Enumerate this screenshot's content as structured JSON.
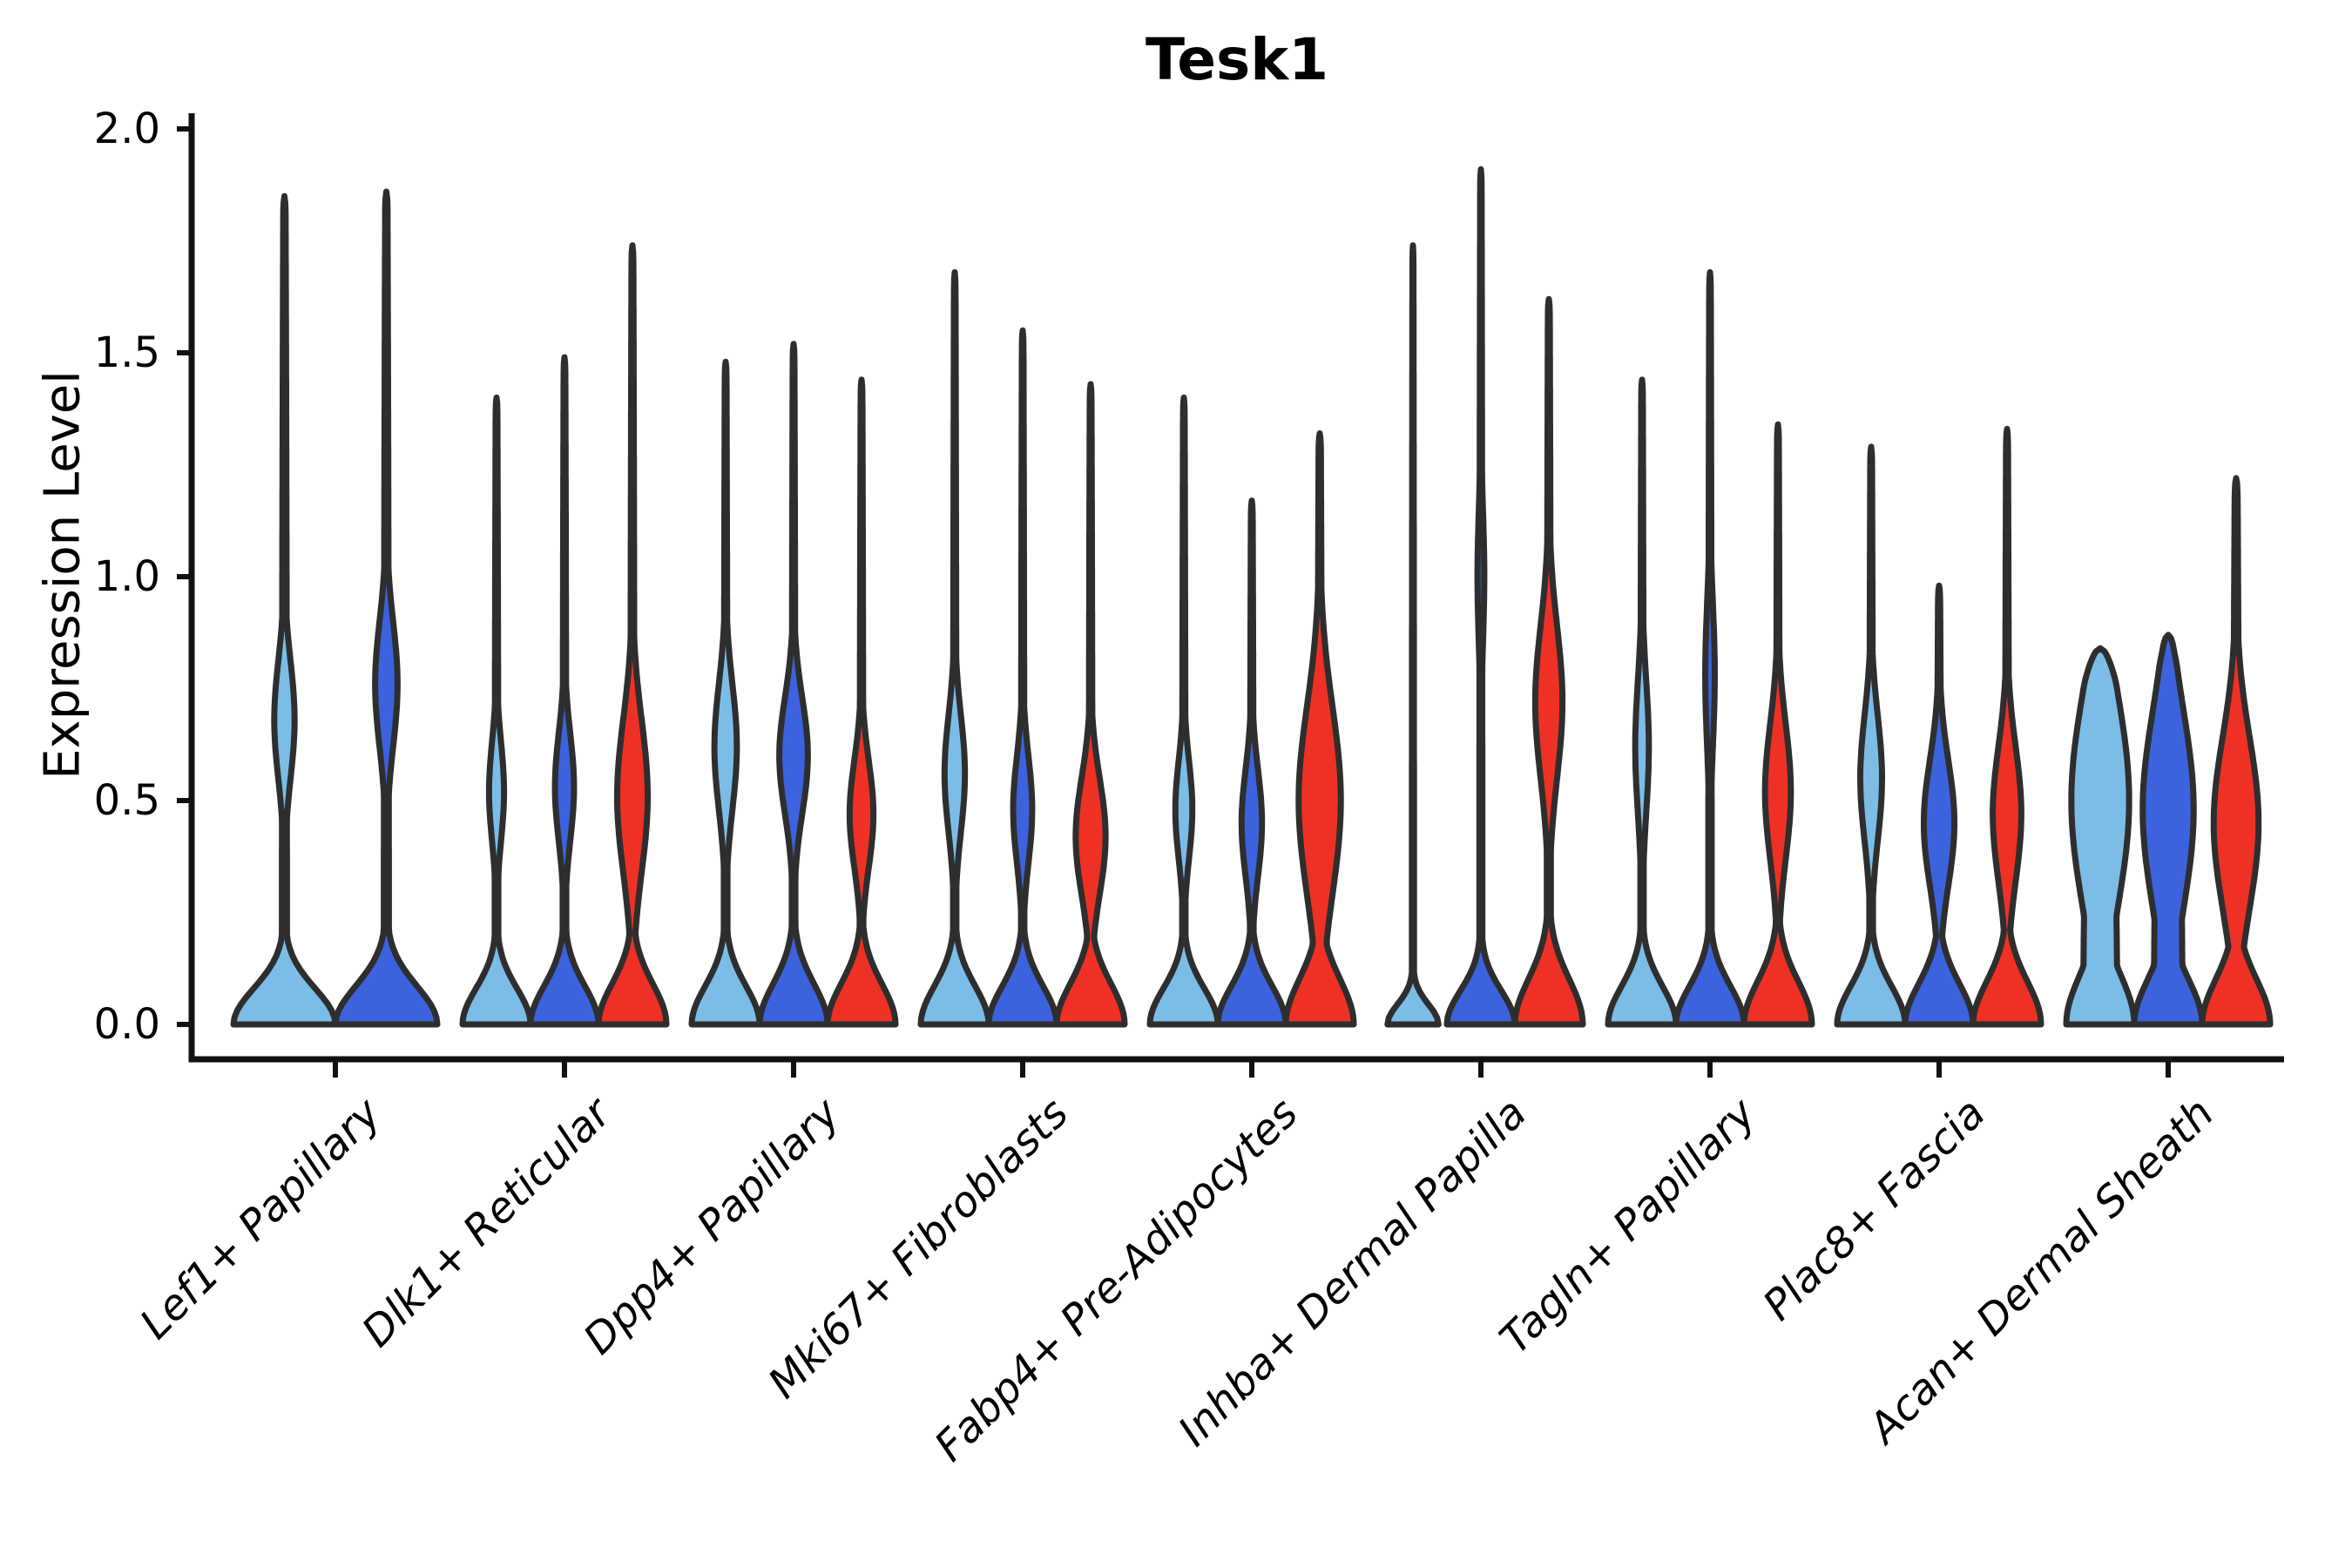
{
  "chart_data": {
    "type": "violin",
    "title": "Tesk1",
    "ylabel": "Expression Level",
    "xlabel": "",
    "ylim": [
      0,
      2
    ],
    "yticks": [
      0.0,
      0.5,
      1.0,
      1.5,
      2.0
    ],
    "ytick_labels": [
      "0.0",
      "0.5",
      "1.0",
      "1.5",
      "2.0"
    ],
    "grid": false,
    "legend_position": "none",
    "outline_color": "#2e2e2e",
    "spine_color": "#111111",
    "series_colors": {
      "light_blue": "#7cbde8",
      "dark_blue": "#3c63dd",
      "red": "#ef3125"
    },
    "categories": [
      "Lef1+ Papillary",
      "Dlk1+ Reticular",
      "Dpp4+ Papillary",
      "Mki67+ Fibroblasts",
      "Fabp4+ Pre-Adipocytes",
      "Inhba+ Dermal Papilla",
      "Tagln+ Papillary",
      "Plac8+ Fascia",
      "Acan+ Dermal Sheath"
    ],
    "groups": [
      {
        "category": "Lef1+ Papillary",
        "violins": [
          {
            "color": "light_blue",
            "max_expression": 1.85,
            "base_sigma": 0.08,
            "bulge_amp": 0.2,
            "bulge_center": 0.68,
            "bulge_sigma": 0.13,
            "stem": 0.05,
            "width_scale": 1.0,
            "cap": 0.045
          },
          {
            "color": "dark_blue",
            "max_expression": 1.86,
            "base_sigma": 0.085,
            "bulge_amp": 0.22,
            "bulge_center": 0.76,
            "bulge_sigma": 0.14,
            "stem": 0.05,
            "width_scale": 1.0,
            "cap": 0.045
          }
        ]
      },
      {
        "category": "Dlk1+ Reticular",
        "violins": [
          {
            "color": "light_blue",
            "max_expression": 1.4,
            "base_sigma": 0.08,
            "bulge_amp": 0.22,
            "bulge_center": 0.52,
            "bulge_sigma": 0.11,
            "stem": 0.055,
            "width_scale": 1.0,
            "cap": 0.045
          },
          {
            "color": "dark_blue",
            "max_expression": 1.49,
            "base_sigma": 0.085,
            "bulge_amp": 0.28,
            "bulge_center": 0.53,
            "bulge_sigma": 0.12,
            "stem": 0.055,
            "width_scale": 1.0,
            "cap": 0.045
          },
          {
            "color": "red",
            "max_expression": 1.74,
            "base_sigma": 0.09,
            "bulge_amp": 0.45,
            "bulge_center": 0.51,
            "bulge_sigma": 0.17,
            "stem": 0.06,
            "width_scale": 1.0,
            "cap": 0.045
          }
        ]
      },
      {
        "category": "Dpp4+ Papillary",
        "violins": [
          {
            "color": "light_blue",
            "max_expression": 1.48,
            "base_sigma": 0.085,
            "bulge_amp": 0.33,
            "bulge_center": 0.62,
            "bulge_sigma": 0.14,
            "stem": 0.055,
            "width_scale": 1.0,
            "cap": 0.045
          },
          {
            "color": "dark_blue",
            "max_expression": 1.52,
            "base_sigma": 0.09,
            "bulge_amp": 0.42,
            "bulge_center": 0.6,
            "bulge_sigma": 0.13,
            "stem": 0.055,
            "width_scale": 1.0,
            "cap": 0.045
          },
          {
            "color": "red",
            "max_expression": 1.44,
            "base_sigma": 0.09,
            "bulge_amp": 0.35,
            "bulge_center": 0.47,
            "bulge_sigma": 0.12,
            "stem": 0.055,
            "width_scale": 1.0,
            "cap": 0.045
          }
        ]
      },
      {
        "category": "Mki67+ Fibroblasts",
        "violins": [
          {
            "color": "light_blue",
            "max_expression": 1.68,
            "base_sigma": 0.085,
            "bulge_amp": 0.3,
            "bulge_center": 0.56,
            "bulge_sigma": 0.13,
            "stem": 0.05,
            "width_scale": 1.0,
            "cap": 0.045
          },
          {
            "color": "dark_blue",
            "max_expression": 1.55,
            "base_sigma": 0.085,
            "bulge_amp": 0.28,
            "bulge_center": 0.48,
            "bulge_sigma": 0.12,
            "stem": 0.05,
            "width_scale": 1.0,
            "cap": 0.045
          },
          {
            "color": "red",
            "max_expression": 1.43,
            "base_sigma": 0.09,
            "bulge_amp": 0.44,
            "bulge_center": 0.42,
            "bulge_sigma": 0.13,
            "stem": 0.055,
            "width_scale": 1.0,
            "cap": 0.045
          }
        ]
      },
      {
        "category": "Fabp4+ Pre-Adipocytes",
        "violins": [
          {
            "color": "light_blue",
            "max_expression": 1.4,
            "base_sigma": 0.08,
            "bulge_amp": 0.25,
            "bulge_center": 0.48,
            "bulge_sigma": 0.11,
            "stem": 0.05,
            "width_scale": 1.0,
            "cap": 0.045
          },
          {
            "color": "dark_blue",
            "max_expression": 1.17,
            "base_sigma": 0.085,
            "bulge_amp": 0.3,
            "bulge_center": 0.45,
            "bulge_sigma": 0.12,
            "stem": 0.055,
            "width_scale": 1.0,
            "cap": 0.045
          },
          {
            "color": "red",
            "max_expression": 1.32,
            "base_sigma": 0.1,
            "bulge_amp": 0.62,
            "bulge_center": 0.5,
            "bulge_sigma": 0.21,
            "stem": 0.07,
            "width_scale": 1.0,
            "cap": 0.045
          }
        ]
      },
      {
        "category": "Inhba+ Dermal Papilla",
        "violins": [
          {
            "color": "light_blue",
            "max_expression": 1.74,
            "base_sigma": 0.045,
            "bulge_amp": 0.0,
            "bulge_center": 0.5,
            "bulge_sigma": 0.1,
            "stem": 0.042,
            "width_scale": 0.75,
            "cap": 0.045
          },
          {
            "color": "dark_blue",
            "max_expression": 1.91,
            "base_sigma": 0.075,
            "bulge_amp": 0.1,
            "bulge_center": 1.0,
            "bulge_sigma": 0.15,
            "stem": 0.045,
            "width_scale": 1.0,
            "cap": 0.045
          },
          {
            "color": "red",
            "max_expression": 1.62,
            "base_sigma": 0.1,
            "bulge_amp": 0.4,
            "bulge_center": 0.72,
            "bulge_sigma": 0.17,
            "stem": 0.06,
            "width_scale": 1.0,
            "cap": 0.045
          }
        ]
      },
      {
        "category": "Tagln+ Papillary",
        "violins": [
          {
            "color": "light_blue",
            "max_expression": 1.44,
            "base_sigma": 0.085,
            "bulge_amp": 0.2,
            "bulge_center": 0.62,
            "bulge_sigma": 0.15,
            "stem": 0.05,
            "width_scale": 1.0,
            "cap": 0.045
          },
          {
            "color": "dark_blue",
            "max_expression": 1.68,
            "base_sigma": 0.085,
            "bulge_amp": 0.14,
            "bulge_center": 0.78,
            "bulge_sigma": 0.16,
            "stem": 0.05,
            "width_scale": 1.0,
            "cap": 0.045
          },
          {
            "color": "red",
            "max_expression": 1.34,
            "base_sigma": 0.095,
            "bulge_amp": 0.38,
            "bulge_center": 0.52,
            "bulge_sigma": 0.15,
            "stem": 0.055,
            "width_scale": 1.0,
            "cap": 0.045
          }
        ]
      },
      {
        "category": "Plac8+ Fascia",
        "violins": [
          {
            "color": "light_blue",
            "max_expression": 1.29,
            "base_sigma": 0.085,
            "bulge_amp": 0.32,
            "bulge_center": 0.55,
            "bulge_sigma": 0.14,
            "stem": 0.055,
            "width_scale": 1.0,
            "cap": 0.045
          },
          {
            "color": "dark_blue",
            "max_expression": 0.98,
            "base_sigma": 0.09,
            "bulge_amp": 0.45,
            "bulge_center": 0.45,
            "bulge_sigma": 0.14,
            "stem": 0.065,
            "width_scale": 1.0,
            "cap": 0.045
          },
          {
            "color": "red",
            "max_expression": 1.33,
            "base_sigma": 0.095,
            "bulge_amp": 0.42,
            "bulge_center": 0.47,
            "bulge_sigma": 0.15,
            "stem": 0.06,
            "width_scale": 1.0,
            "cap": 0.045
          }
        ]
      },
      {
        "category": "Acan+ Dermal Sheath",
        "violins": [
          {
            "color": "light_blue",
            "max_expression": 0.84,
            "base_sigma": 0.11,
            "bulge_amp": 0.85,
            "bulge_center": 0.5,
            "bulge_sigma": 0.24,
            "stem": 0.5,
            "width_scale": 1.0,
            "cap": 0.09
          },
          {
            "color": "dark_blue",
            "max_expression": 0.87,
            "base_sigma": 0.1,
            "bulge_amp": 0.75,
            "bulge_center": 0.48,
            "bulge_sigma": 0.22,
            "stem": 0.42,
            "width_scale": 1.0,
            "cap": 0.08
          },
          {
            "color": "red",
            "max_expression": 1.22,
            "base_sigma": 0.1,
            "bulge_amp": 0.66,
            "bulge_center": 0.45,
            "bulge_sigma": 0.19,
            "stem": 0.09,
            "width_scale": 1.0,
            "cap": 0.05
          }
        ]
      }
    ]
  }
}
